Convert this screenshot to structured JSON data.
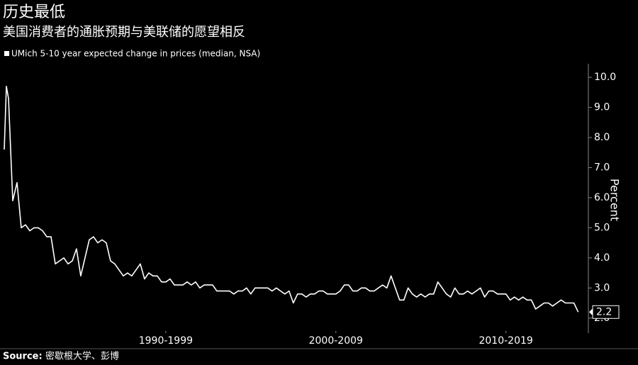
{
  "chart_data": {
    "type": "line",
    "title": "历史最低",
    "subtitle": "美国消费者的通胀预期与美联储的愿望相反",
    "source_label": "Source:",
    "source": "密歇根大学、彭博",
    "y_label": "Percent",
    "x": [
      1985.5,
      1985.625,
      1985.75,
      1986.0,
      1986.25,
      1986.5,
      1986.75,
      1987,
      1987.25,
      1987.5,
      1987.75,
      1988,
      1988.25,
      1988.5,
      1988.75,
      1989,
      1989.25,
      1989.5,
      1989.75,
      1990,
      1990.25,
      1990.5,
      1990.75,
      1991,
      1991.25,
      1991.5,
      1991.75,
      1992,
      1992.25,
      1992.5,
      1992.75,
      1993,
      1993.25,
      1993.5,
      1993.75,
      1994,
      1994.25,
      1994.5,
      1994.75,
      1995,
      1995.25,
      1995.5,
      1995.75,
      1996,
      1996.25,
      1996.5,
      1996.75,
      1997,
      1997.25,
      1997.5,
      1997.75,
      1998,
      1998.25,
      1998.5,
      1998.75,
      1999,
      1999.25,
      1999.5,
      1999.75,
      2000,
      2000.25,
      2000.5,
      2000.75,
      2001,
      2001.25,
      2001.5,
      2001.75,
      2002,
      2002.25,
      2002.5,
      2002.75,
      2003,
      2003.25,
      2003.5,
      2003.75,
      2004,
      2004.25,
      2004.5,
      2004.75,
      2005,
      2005.25,
      2005.5,
      2005.75,
      2006,
      2006.25,
      2006.5,
      2006.75,
      2007,
      2007.25,
      2007.5,
      2007.75,
      2008,
      2008.25,
      2008.5,
      2008.75,
      2009,
      2009.25,
      2009.5,
      2009.75,
      2010,
      2010.25,
      2010.5,
      2010.75,
      2011,
      2011.25,
      2011.5,
      2011.75,
      2012,
      2012.25,
      2012.5,
      2012.75,
      2013,
      2013.25,
      2013.5,
      2013.75,
      2014,
      2014.25,
      2014.5,
      2014.75,
      2015,
      2015.25,
      2015.5,
      2015.75,
      2016,
      2016.25,
      2016.5,
      2016.75,
      2017,
      2017.25,
      2017.5,
      2017.75,
      2018,
      2018.25,
      2018.5,
      2018.75,
      2019,
      2019.25
    ],
    "series": [
      {
        "name": "UMich 5-10 year expected change in prices (median, NSA)",
        "color": "#ffffff",
        "values": [
          7.6,
          9.7,
          9.3,
          5.9,
          6.5,
          5.0,
          5.1,
          4.9,
          5.0,
          5.0,
          4.9,
          4.7,
          4.7,
          3.8,
          3.9,
          4.0,
          3.8,
          3.9,
          4.3,
          3.4,
          4.0,
          4.6,
          4.7,
          4.5,
          4.6,
          4.5,
          3.9,
          3.8,
          3.6,
          3.4,
          3.5,
          3.4,
          3.6,
          3.8,
          3.3,
          3.5,
          3.4,
          3.4,
          3.2,
          3.2,
          3.3,
          3.1,
          3.1,
          3.1,
          3.2,
          3.1,
          3.2,
          3.0,
          3.1,
          3.1,
          3.1,
          2.9,
          2.9,
          2.9,
          2.9,
          2.8,
          2.9,
          2.9,
          3.0,
          2.8,
          3.0,
          3.0,
          3.0,
          3.0,
          2.9,
          3.0,
          2.9,
          2.8,
          2.9,
          2.5,
          2.8,
          2.8,
          2.7,
          2.8,
          2.8,
          2.9,
          2.9,
          2.8,
          2.8,
          2.8,
          2.9,
          3.1,
          3.1,
          2.9,
          2.9,
          3.0,
          3.0,
          2.9,
          2.9,
          3.0,
          3.1,
          3.0,
          3.4,
          3.0,
          2.6,
          2.6,
          3.0,
          2.8,
          2.7,
          2.8,
          2.7,
          2.8,
          2.8,
          3.2,
          3.0,
          2.8,
          2.7,
          3.0,
          2.8,
          2.8,
          2.9,
          2.8,
          2.9,
          3.0,
          2.7,
          2.9,
          2.9,
          2.8,
          2.8,
          2.8,
          2.6,
          2.7,
          2.6,
          2.7,
          2.6,
          2.6,
          2.3,
          2.4,
          2.5,
          2.5,
          2.4,
          2.5,
          2.6,
          2.5,
          2.5,
          2.5,
          2.2
        ]
      }
    ],
    "xlim": [
      1985.25,
      2019.85
    ],
    "xticks": [
      {
        "value": 1995,
        "label": "1990-1999"
      },
      {
        "value": 2005,
        "label": "2000-2009"
      },
      {
        "value": 2015,
        "label": "2010-2019"
      }
    ],
    "ylim": [
      1.5,
      10.45
    ],
    "yticks": [
      {
        "value": 2,
        "label": "2.0"
      },
      {
        "value": 3,
        "label": "3.0"
      },
      {
        "value": 4,
        "label": "4.0"
      },
      {
        "value": 5,
        "label": "5.0"
      },
      {
        "value": 6,
        "label": "6.0"
      },
      {
        "value": 7,
        "label": "7.0"
      },
      {
        "value": 8,
        "label": "8.0"
      },
      {
        "value": 9,
        "label": "9.0"
      },
      {
        "value": 10,
        "label": "10.0"
      }
    ],
    "grid": false,
    "legend": "top-left"
  }
}
